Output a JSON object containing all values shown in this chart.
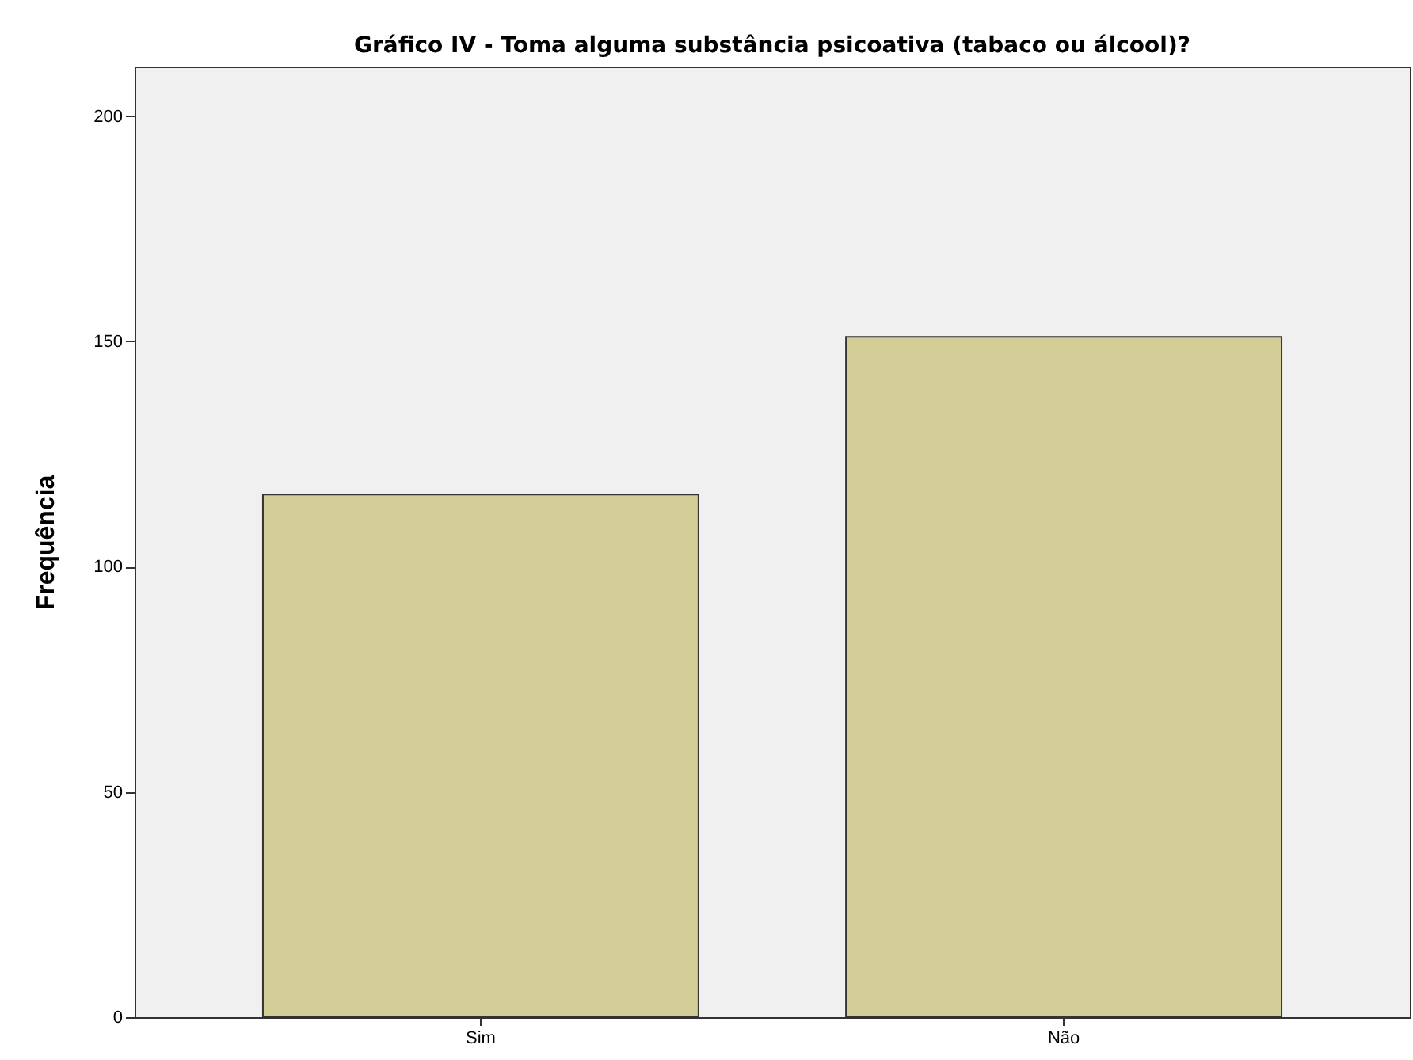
{
  "chart_data": {
    "type": "bar",
    "title": "Gráfico IV - Toma alguma substância psicoativa (tabaco ou álcool)?",
    "ylabel": "Frequência",
    "categories": [
      "Sim",
      "Não"
    ],
    "values": [
      116,
      151
    ],
    "color": "#d3ce98",
    "ylim": [
      0,
      211
    ],
    "yticks": [
      0,
      50,
      100,
      150,
      200
    ],
    "grid": false
  }
}
